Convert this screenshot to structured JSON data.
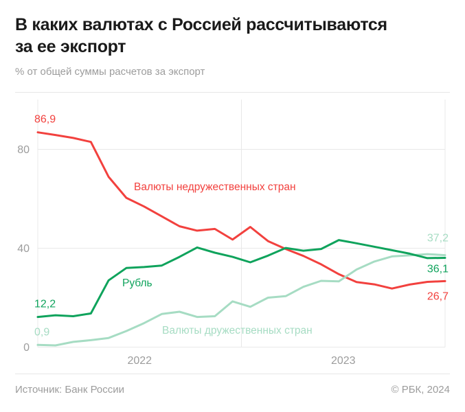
{
  "header": {
    "title_line1": "В каких валютах с Россией рассчитываются",
    "title_line2": "за ее экспорт",
    "subtitle": "% от общей суммы расчетов за экспорт"
  },
  "footer": {
    "source": "Источник: Банк России",
    "copyright": "© РБК, 2024"
  },
  "colors": {
    "unfriendly": "#f2413e",
    "ruble": "#0fa35c",
    "friendly": "#a6dcc3",
    "grid": "#e8e8e8",
    "axis_text": "#9c9c9c",
    "title_text": "#1a1a1a"
  },
  "chart_data": {
    "type": "line",
    "title": "В каких валютах с Россией рассчитываются за ее экспорт",
    "subtitle": "% от общей суммы расчетов за экспорт",
    "x_unit": "month",
    "months": [
      "2022-01",
      "2022-02",
      "2022-03",
      "2022-04",
      "2022-05",
      "2022-06",
      "2022-07",
      "2022-08",
      "2022-09",
      "2022-10",
      "2022-11",
      "2022-12",
      "2023-01",
      "2023-02",
      "2023-03",
      "2023-04",
      "2023-05",
      "2023-06",
      "2023-07",
      "2023-08",
      "2023-09",
      "2023-10",
      "2023-11",
      "2023-12"
    ],
    "x_tick_labels": [
      "2022",
      "2023"
    ],
    "y_ticks": [
      0,
      40,
      80
    ],
    "ylim": [
      0,
      100
    ],
    "grid": true,
    "legend_position": "inline-annotations",
    "series": [
      {
        "name": "Валюты недружественных стран",
        "color": "#f2413e",
        "start_label": "86,9",
        "end_label": "26,7",
        "values": [
          86.9,
          85.8,
          84.6,
          83.0,
          68.9,
          60.4,
          56.9,
          52.9,
          48.9,
          47.1,
          47.8,
          43.5,
          48.6,
          42.9,
          39.7,
          36.9,
          33.5,
          29.5,
          26.3,
          25.4,
          23.7,
          25.3,
          26.4,
          26.7
        ]
      },
      {
        "name": "Рубль",
        "color": "#0fa35c",
        "start_label": "12,2",
        "end_label": "36,1",
        "values": [
          12.2,
          12.9,
          12.5,
          13.6,
          27.0,
          32.0,
          32.4,
          33.0,
          36.5,
          40.3,
          38.2,
          36.5,
          34.3,
          37.0,
          40.1,
          39.0,
          39.7,
          43.3,
          42.0,
          40.6,
          39.2,
          37.8,
          36.0,
          36.1
        ]
      },
      {
        "name": "Валюты дружественных стран",
        "color": "#a6dcc3",
        "start_label": "0,9",
        "end_label": "37,2",
        "values": [
          0.9,
          0.7,
          2.1,
          2.8,
          3.7,
          6.5,
          9.7,
          13.4,
          14.3,
          12.2,
          12.5,
          18.5,
          16.3,
          20.0,
          20.6,
          24.4,
          26.8,
          26.6,
          31.4,
          34.6,
          36.7,
          37.1,
          37.6,
          37.2
        ]
      }
    ]
  }
}
